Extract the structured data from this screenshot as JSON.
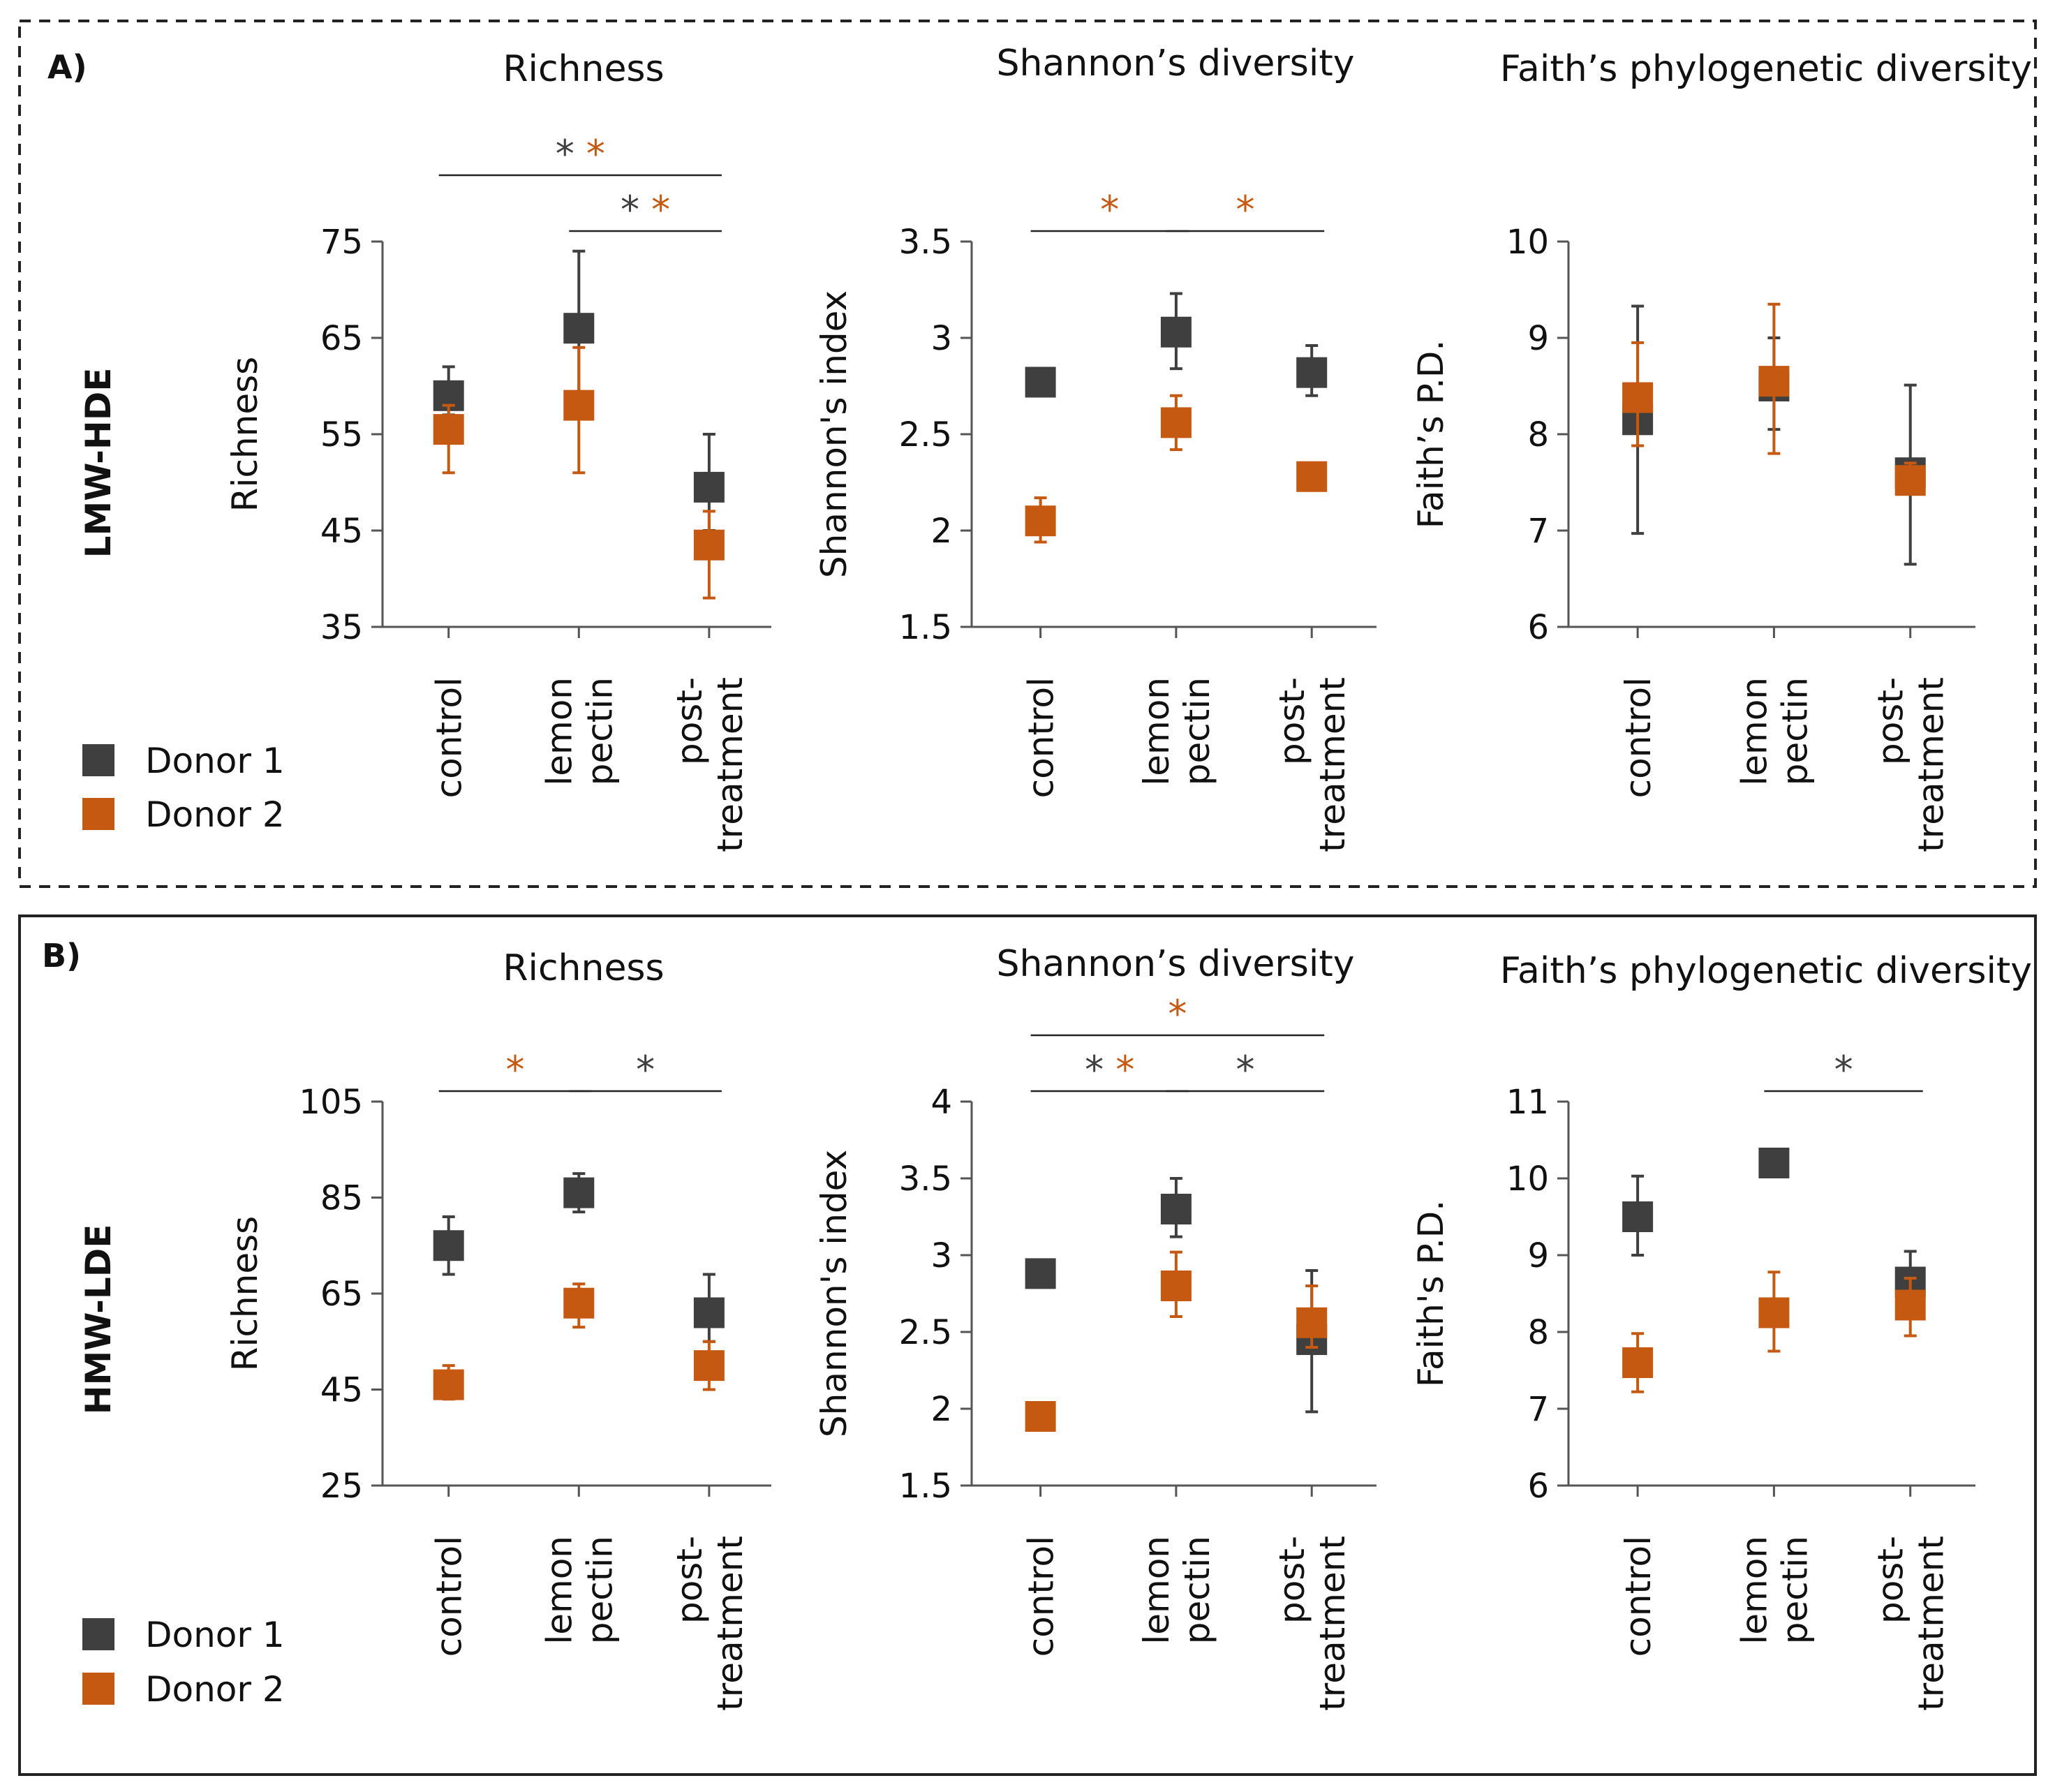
{
  "colors": {
    "donor1": "#3f3f3f",
    "donor2": "#c65911"
  },
  "legend": [
    {
      "key": "donor1",
      "label": "Donor 1"
    },
    {
      "key": "donor2",
      "label": "Donor 2"
    }
  ],
  "panels": [
    {
      "label": "A)",
      "row_label": "LMW-HDE",
      "border": "dashed",
      "charts": [
        {
          "title": "Richness",
          "ylabel": "Richness",
          "yticks": [
            "75",
            "65",
            "55",
            "45",
            "35"
          ],
          "sig": [
            {
              "text": "* *",
              "stars": [
                {
                  "t": "*",
                  "c": "donor1"
                },
                {
                  "t": "*",
                  "c": "donor2"
                }
              ],
              "from": 0,
              "to": 2,
              "level": 2
            },
            {
              "stars": [
                {
                  "t": "*",
                  "c": "donor1"
                },
                {
                  "t": "*",
                  "c": "donor2"
                }
              ],
              "from": 1,
              "to": 2,
              "level": 1
            }
          ]
        },
        {
          "title": "Shannon’s diversity",
          "ylabel": "Shannon's index",
          "yticks": [
            "3.5",
            "3",
            "2.5",
            "2",
            "1.5"
          ],
          "sig": [
            {
              "stars": [
                {
                  "t": "*",
                  "c": "donor2"
                }
              ],
              "from": 0,
              "to": 1,
              "level": 1
            },
            {
              "stars": [
                {
                  "t": "*",
                  "c": "donor2"
                }
              ],
              "from": 1,
              "to": 2,
              "level": 1
            }
          ]
        },
        {
          "title": "Faith’s phylogenetic diversity",
          "ylabel": "Faith’s P.D.",
          "yticks": [
            "10",
            "9",
            "8",
            "7",
            "6"
          ],
          "sig": []
        }
      ]
    },
    {
      "label": "B)",
      "row_label": "HMW-LDE",
      "border": "solid",
      "charts": [
        {
          "title": "Richness",
          "ylabel": "Richness",
          "yticks": [
            "105",
            "85",
            "65",
            "45",
            "25"
          ],
          "sig": [
            {
              "stars": [
                {
                  "t": "*",
                  "c": "donor2"
                }
              ],
              "from": 0,
              "to": 1,
              "level": 1
            },
            {
              "stars": [
                {
                  "t": "*",
                  "c": "donor1"
                }
              ],
              "from": 1,
              "to": 2,
              "level": 1
            }
          ]
        },
        {
          "title": "Shannon’s diversity",
          "ylabel": "Shannon's index",
          "yticks": [
            "4",
            "3.5",
            "3",
            "2.5",
            "2",
            "1.5"
          ],
          "sig": [
            {
              "stars": [
                {
                  "t": "*",
                  "c": "donor2"
                }
              ],
              "from": 0,
              "to": 2,
              "level": 2
            },
            {
              "stars": [
                {
                  "t": "*",
                  "c": "donor1"
                },
                {
                  "t": "*",
                  "c": "donor2"
                }
              ],
              "from": 0,
              "to": 1,
              "level": 1
            },
            {
              "stars": [
                {
                  "t": "*",
                  "c": "donor1"
                }
              ],
              "from": 1,
              "to": 2,
              "level": 1
            }
          ]
        },
        {
          "title": "Faith’s phylogenetic diversity",
          "ylabel": "Faith's P.D.",
          "yticks": [
            "11",
            "10",
            "9",
            "8",
            "7",
            "6"
          ],
          "sig": [
            {
              "stars": [
                {
                  "t": "*",
                  "c": "donor1"
                }
              ],
              "from": 1,
              "to": 2,
              "level": 1
            }
          ]
        }
      ]
    }
  ],
  "chart_data": [
    {
      "panel": "A",
      "group": "LMW-HDE",
      "type": "scatter",
      "title": "Richness",
      "ylabel": "Richness",
      "categories": [
        [
          "control"
        ],
        [
          "lemon",
          "pectin"
        ],
        [
          "post-",
          "treatment"
        ]
      ],
      "ylim": [
        35,
        75
      ],
      "series": [
        {
          "name": "Donor 1",
          "key": "donor1",
          "values": [
            59,
            66,
            49.5
          ],
          "err_low": [
            57,
            58,
            45
          ],
          "err_high": [
            62,
            74,
            55
          ]
        },
        {
          "name": "Donor 2",
          "key": "donor2",
          "values": [
            55.5,
            58,
            43.5
          ],
          "err_low": [
            51,
            51,
            38
          ],
          "err_high": [
            58,
            64,
            47
          ]
        }
      ]
    },
    {
      "panel": "A",
      "group": "LMW-HDE",
      "type": "scatter",
      "title": "Shannon’s diversity",
      "ylabel": "Shannon's index",
      "categories": [
        [
          "control"
        ],
        [
          "lemon",
          "pectin"
        ],
        [
          "post-",
          "treatment"
        ]
      ],
      "ylim": [
        1.5,
        3.5
      ],
      "series": [
        {
          "name": "Donor 1",
          "key": "donor1",
          "values": [
            2.77,
            3.03,
            2.82
          ],
          "err_low": [
            2.77,
            2.84,
            2.7
          ],
          "err_high": [
            2.77,
            3.23,
            2.96
          ]
        },
        {
          "name": "Donor 2",
          "key": "donor2",
          "values": [
            2.05,
            2.56,
            2.28
          ],
          "err_low": [
            1.94,
            2.42,
            2.23
          ],
          "err_high": [
            2.17,
            2.7,
            2.33
          ]
        }
      ]
    },
    {
      "panel": "A",
      "group": "LMW-HDE",
      "type": "scatter",
      "title": "Faith’s phylogenetic diversity",
      "ylabel": "Faith’s P.D.",
      "categories": [
        [
          "control"
        ],
        [
          "lemon",
          "pectin"
        ],
        [
          "post-",
          "treatment"
        ]
      ],
      "ylim": [
        6,
        10
      ],
      "series": [
        {
          "name": "Donor 1",
          "key": "donor1",
          "values": [
            8.15,
            8.5,
            7.6
          ],
          "err_low": [
            6.97,
            8.05,
            6.65
          ],
          "err_high": [
            9.33,
            9.0,
            8.51
          ]
        },
        {
          "name": "Donor 2",
          "key": "donor2",
          "values": [
            8.38,
            8.55,
            7.52
          ],
          "err_low": [
            7.88,
            7.8,
            7.4
          ],
          "err_high": [
            8.95,
            9.35,
            7.7
          ]
        }
      ]
    },
    {
      "panel": "B",
      "group": "HMW-LDE",
      "type": "scatter",
      "title": "Richness",
      "ylabel": "Richness",
      "categories": [
        [
          "control"
        ],
        [
          "lemon",
          "pectin"
        ],
        [
          "post-",
          "treatment"
        ]
      ],
      "ylim": [
        25,
        105
      ],
      "series": [
        {
          "name": "Donor 1",
          "key": "donor1",
          "values": [
            75,
            86,
            61
          ],
          "err_low": [
            69,
            82,
            55
          ],
          "err_high": [
            81,
            90,
            69
          ]
        },
        {
          "name": "Donor 2",
          "key": "donor2",
          "values": [
            46,
            63,
            50
          ],
          "err_low": [
            43,
            58,
            45
          ],
          "err_high": [
            50,
            67,
            55
          ]
        }
      ]
    },
    {
      "panel": "B",
      "group": "HMW-LDE",
      "type": "scatter",
      "title": "Shannon’s diversity",
      "ylabel": "Shannon's index",
      "categories": [
        [
          "control"
        ],
        [
          "lemon",
          "pectin"
        ],
        [
          "post-",
          "treatment"
        ]
      ],
      "ylim": [
        1.5,
        4
      ],
      "series": [
        {
          "name": "Donor 1",
          "key": "donor1",
          "values": [
            2.88,
            3.3,
            2.45
          ],
          "err_low": [
            2.88,
            3.12,
            1.98
          ],
          "err_high": [
            2.88,
            3.5,
            2.9
          ]
        },
        {
          "name": "Donor 2",
          "key": "donor2",
          "values": [
            1.95,
            2.8,
            2.56
          ],
          "err_low": [
            1.95,
            2.6,
            2.4
          ],
          "err_high": [
            1.95,
            3.02,
            2.8
          ]
        }
      ]
    },
    {
      "panel": "B",
      "group": "HMW-LDE",
      "type": "scatter",
      "title": "Faith’s phylogenetic diversity",
      "ylabel": "Faith's P.D.",
      "categories": [
        [
          "control"
        ],
        [
          "lemon",
          "pectin"
        ],
        [
          "post-",
          "treatment"
        ]
      ],
      "ylim": [
        6,
        11
      ],
      "series": [
        {
          "name": "Donor 1",
          "key": "donor1",
          "values": [
            9.5,
            10.2,
            8.65
          ],
          "err_low": [
            9.0,
            10.2,
            8.4
          ],
          "err_high": [
            10.03,
            10.2,
            9.05
          ]
        },
        {
          "name": "Donor 2",
          "key": "donor2",
          "values": [
            7.6,
            8.25,
            8.35
          ],
          "err_low": [
            7.22,
            7.75,
            7.95
          ],
          "err_high": [
            7.98,
            8.78,
            8.7
          ]
        }
      ]
    }
  ]
}
